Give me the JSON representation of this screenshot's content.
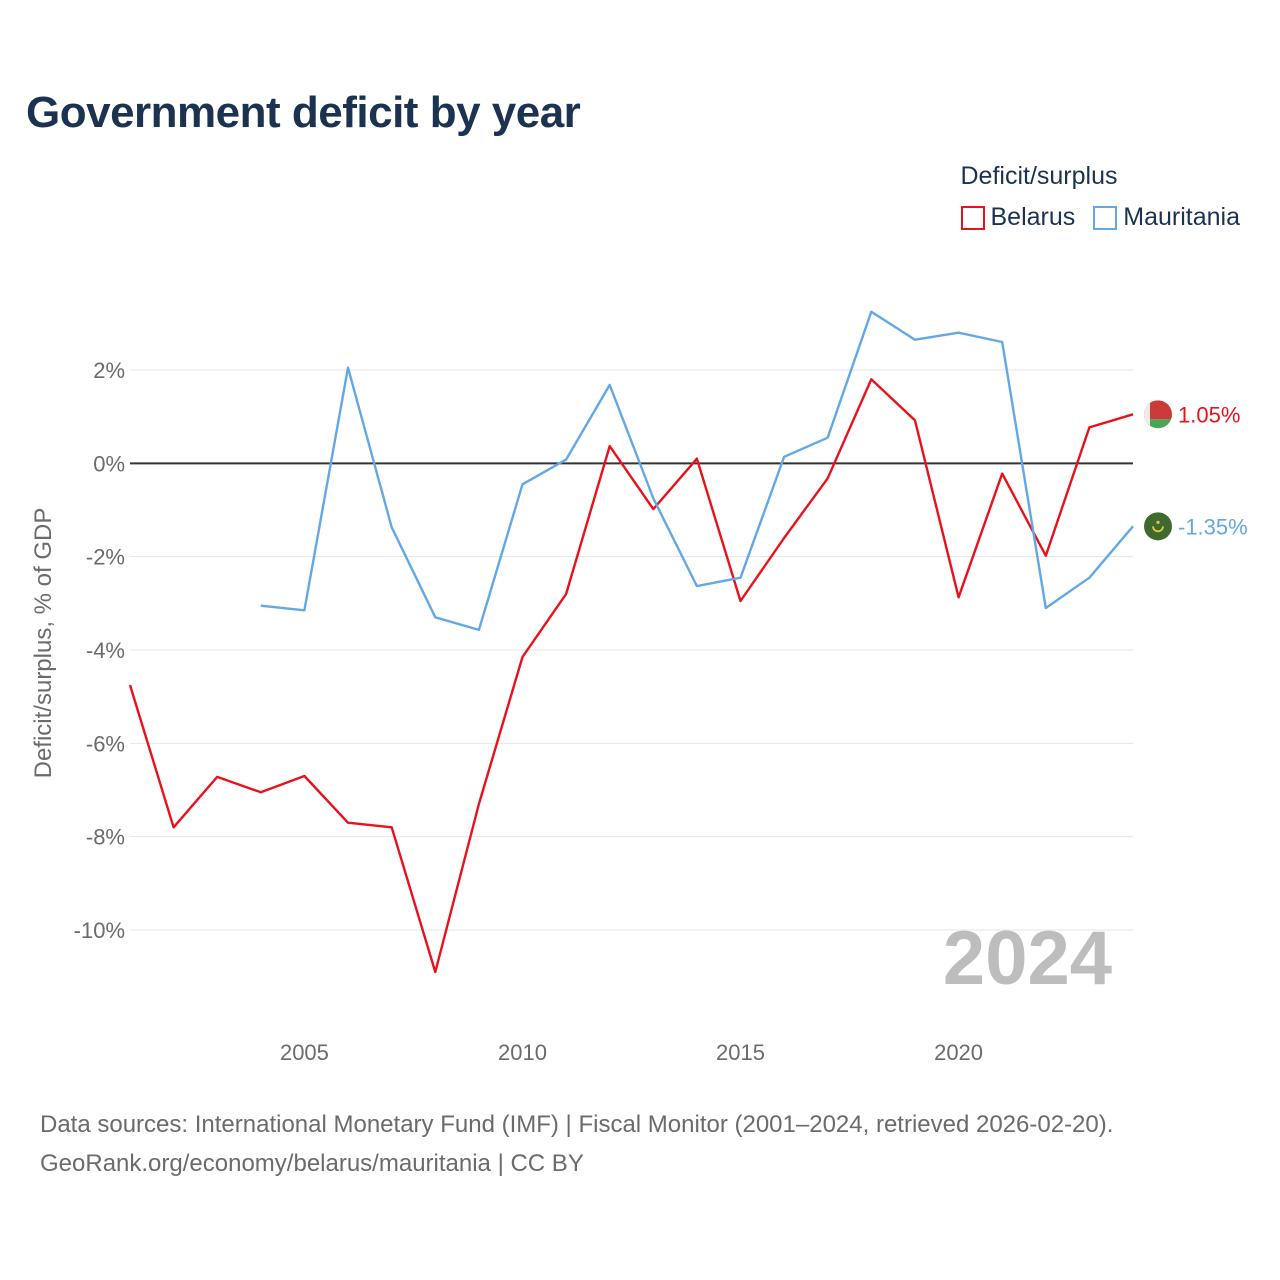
{
  "title": "Government deficit by year",
  "legend": {
    "title": "Deficit/surplus"
  },
  "year_watermark": "2024",
  "source_line": "Data sources: International Monetary Fund (IMF) | Fiscal Monitor (2001–2024, retrieved 2026-02-20).",
  "attribution": "GeoRank.org/economy/belarus/mauritania | CC BY",
  "chart_data": {
    "type": "line",
    "title": "Government deficit by year",
    "xlabel": "",
    "ylabel": "Deficit/surplus, % of GDP",
    "xlim": [
      2001,
      2024
    ],
    "ylim": [
      -11.5,
      3.7
    ],
    "xticks": [
      2005,
      2010,
      2015,
      2020
    ],
    "xtick_labels": [
      "2005",
      "2010",
      "2015",
      "2020"
    ],
    "yticks": [
      2,
      0,
      -2,
      -4,
      -6,
      -8,
      -10
    ],
    "ytick_labels": [
      "2%",
      "0%",
      "-2%",
      "-4%",
      "-6%",
      "-8%",
      "-10%"
    ],
    "grid": true,
    "zero_line": true,
    "legend_position": "top-right",
    "series": [
      {
        "name": "Belarus",
        "color": "#e8111c",
        "icon": "belarus-flag-icon",
        "end_label": "1.05%",
        "x": [
          2001,
          2002,
          2003,
          2004,
          2005,
          2006,
          2007,
          2008,
          2009,
          2010,
          2011,
          2012,
          2013,
          2014,
          2015,
          2016,
          2017,
          2018,
          2019,
          2020,
          2021,
          2022,
          2023,
          2024
        ],
        "values": [
          -4.75,
          -7.8,
          -6.72,
          -7.05,
          -6.7,
          -7.7,
          -7.8,
          -10.9,
          -7.3,
          -4.15,
          -2.8,
          0.37,
          -0.98,
          0.1,
          -2.95,
          -1.6,
          -0.32,
          1.8,
          0.92,
          -2.87,
          -0.22,
          -1.98,
          0.77,
          1.05
        ]
      },
      {
        "name": "Mauritania",
        "color": "#63a8e5",
        "icon": "mauritania-flag-icon",
        "end_label": "-1.35%",
        "x": [
          2004,
          2005,
          2006,
          2007,
          2008,
          2009,
          2010,
          2011,
          2012,
          2013,
          2014,
          2015,
          2016,
          2017,
          2018,
          2019,
          2020,
          2021,
          2022,
          2023,
          2024
        ],
        "values": [
          -3.05,
          -3.15,
          2.05,
          -1.37,
          -3.3,
          -3.57,
          -0.45,
          0.08,
          1.68,
          -0.75,
          -2.63,
          -2.45,
          0.14,
          0.55,
          3.25,
          2.65,
          2.8,
          2.6,
          -3.1,
          -2.45,
          -1.35
        ]
      }
    ]
  }
}
